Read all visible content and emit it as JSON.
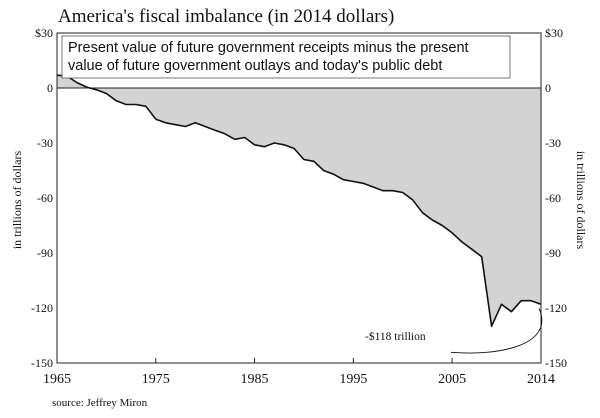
{
  "chart_data": {
    "type": "area",
    "title": "America's fiscal imbalance (in 2014 dollars)",
    "subtitle": [
      "Present value of future government receipts minus the present",
      "value of future government outlays and today's public debt"
    ],
    "ylabel_left": "in trillions of dollars",
    "ylabel_right": "in trillions of dollars",
    "ylim": [
      -150,
      30
    ],
    "xlim": [
      1965,
      2014
    ],
    "yticks": [
      {
        "value": 30,
        "label": "$30"
      },
      {
        "value": 0,
        "label": "0"
      },
      {
        "value": -30,
        "label": "-30"
      },
      {
        "value": -60,
        "label": "-60"
      },
      {
        "value": -90,
        "label": "-90"
      },
      {
        "value": -120,
        "label": "-120"
      },
      {
        "value": -150,
        "label": "-150"
      }
    ],
    "xticks": [
      {
        "value": 1965,
        "label": "1965"
      },
      {
        "value": 1975,
        "label": "1975"
      },
      {
        "value": 1985,
        "label": "1985"
      },
      {
        "value": 1995,
        "label": "1995"
      },
      {
        "value": 2005,
        "label": "2005"
      },
      {
        "value": 2014,
        "label": "2014"
      }
    ],
    "x": [
      1965,
      1966,
      1967,
      1968,
      1969,
      1970,
      1971,
      1972,
      1973,
      1974,
      1975,
      1976,
      1977,
      1978,
      1979,
      1980,
      1981,
      1982,
      1983,
      1984,
      1985,
      1986,
      1987,
      1988,
      1989,
      1990,
      1991,
      1992,
      1993,
      1994,
      1995,
      1996,
      1997,
      1998,
      1999,
      2000,
      2001,
      2002,
      2003,
      2004,
      2005,
      2006,
      2007,
      2008,
      2009,
      2010,
      2011,
      2012,
      2013,
      2014
    ],
    "values": [
      7,
      6.5,
      3,
      0.5,
      -1,
      -3,
      -7,
      -9,
      -9,
      -10,
      -17,
      -19,
      -20,
      -21,
      -19,
      -21,
      -23,
      -25,
      -28,
      -27,
      -31,
      -32,
      -30,
      -31,
      -33,
      -39,
      -40,
      -45,
      -47,
      -50,
      -51,
      -52,
      -54,
      -56,
      -56,
      -57,
      -61,
      -68,
      -72,
      -75,
      -79,
      -84,
      -88,
      -92,
      -130,
      -118,
      -122,
      -116,
      -116,
      -118
    ],
    "annotation": {
      "text": "-$118 trillion",
      "x": 2014,
      "y": -118
    },
    "fill_color": "#d3d3d3",
    "line_color": "#111111",
    "grid": false,
    "source": "source: Jeffrey Miron"
  }
}
